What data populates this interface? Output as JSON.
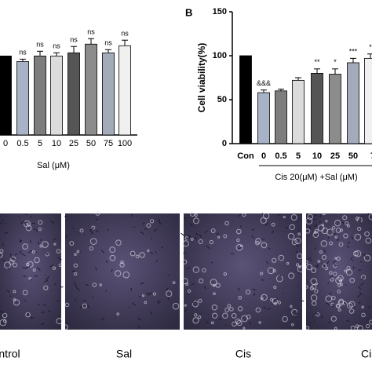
{
  "chart_data": [
    {
      "type": "bar",
      "xlabel": "Sal (μM)",
      "categories": [
        "0",
        "0.5",
        "5",
        "10",
        "25",
        "50",
        "75",
        "100"
      ],
      "values": [
        100,
        93,
        100,
        100,
        104,
        115,
        104,
        113
      ],
      "errors": [
        0,
        3,
        6,
        4,
        8,
        7,
        4,
        7
      ],
      "annotations": [
        null,
        "ns",
        "ns",
        "ns",
        "ns",
        "ns",
        "ns",
        "ns"
      ],
      "colors": [
        "#000000",
        "#a9b3c7",
        "#7d7d7d",
        "#dcdcdc",
        "#555555",
        "#8c8c8c",
        "#a3abbb",
        "#f0f0f0"
      ],
      "ylim": [
        0,
        150
      ]
    },
    {
      "type": "bar",
      "panel": "B",
      "ylabel": "Cell viability(%)",
      "group_label": "Cis 20(μM) +Sal (μM)",
      "categories": [
        "Con",
        "0",
        "0.5",
        "5",
        "10",
        "25",
        "50",
        "7"
      ],
      "values": [
        100,
        58,
        60,
        72,
        80,
        79,
        92,
        97
      ],
      "errors": [
        0,
        3,
        2,
        3,
        5,
        6,
        5,
        5
      ],
      "annotations": [
        null,
        "&&&",
        null,
        null,
        "**",
        "*",
        "***",
        "*"
      ],
      "colors": [
        "#000000",
        "#a9b3c7",
        "#7d7d7d",
        "#dcdcdc",
        "#555555",
        "#8c8c8c",
        "#a3abbb",
        "#f0f0f0"
      ],
      "ylim": [
        0,
        150
      ],
      "yticks": [
        0,
        50,
        100,
        150
      ]
    }
  ],
  "images": [
    {
      "label": "ntrol"
    },
    {
      "label": "Sal"
    },
    {
      "label": "Cis"
    },
    {
      "label": "Cis"
    }
  ]
}
